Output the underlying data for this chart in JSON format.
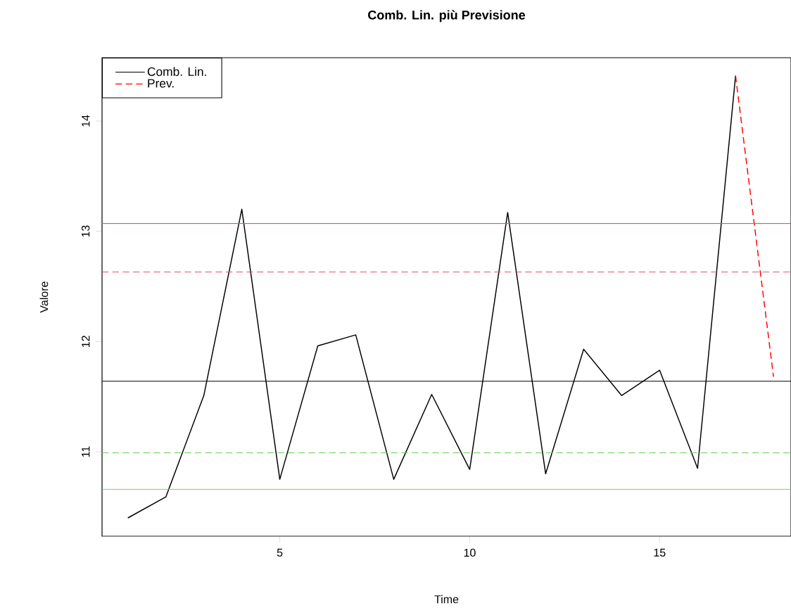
{
  "chart_data": {
    "type": "line",
    "title": "Comb. Lin. più Previsione",
    "xlabel": "Time",
    "ylabel": "Valore",
    "series": [
      {
        "name": "Comb. Lin.",
        "color": "#000000",
        "line_style": "solid",
        "x": [
          1,
          2,
          3,
          4,
          5,
          6,
          7,
          8,
          9,
          10,
          11,
          12,
          13,
          14,
          15,
          16,
          17
        ],
        "values": [
          10.4,
          10.59,
          11.51,
          13.2,
          10.75,
          11.96,
          12.06,
          10.75,
          11.52,
          10.84,
          13.17,
          10.8,
          11.93,
          11.51,
          11.74,
          10.85,
          14.41
        ]
      },
      {
        "name": "Prev.",
        "color": "#ff0000",
        "line_style": "dashed",
        "x": [
          17,
          18
        ],
        "values": [
          14.41,
          11.68
        ]
      }
    ],
    "ref_lines": [
      {
        "axis": "y",
        "value": 13.07,
        "color": "#df536b",
        "line_style": "solid"
      },
      {
        "axis": "y",
        "value": 12.63,
        "color": "#df536b",
        "line_style": "dashed"
      },
      {
        "axis": "y",
        "value": 11.64,
        "color": "#000000",
        "line_style": "solid"
      },
      {
        "axis": "y",
        "value": 10.99,
        "color": "#61d04f",
        "line_style": "dashed"
      },
      {
        "axis": "y",
        "value": 10.66,
        "color": "#61d04f",
        "line_style": "solid"
      }
    ],
    "xlim": [
      0.32,
      18.46
    ],
    "ylim": [
      10.234,
      14.574
    ],
    "xticks": [
      5,
      10,
      15
    ],
    "yticks": [
      11,
      12,
      13,
      14
    ],
    "grid": false,
    "legend": "top left",
    "marker": "none"
  }
}
